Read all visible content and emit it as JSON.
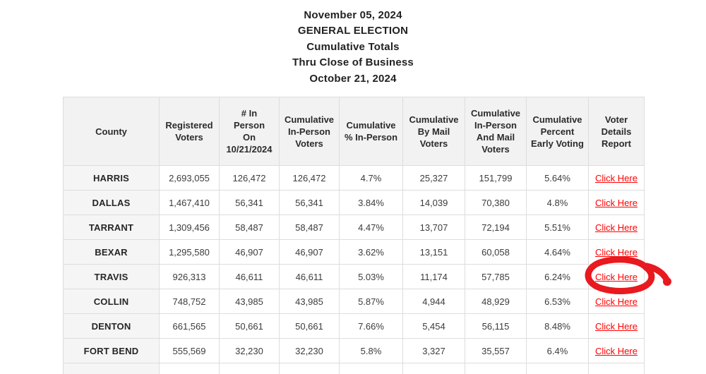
{
  "title": {
    "lines": [
      "November 05, 2024",
      "GENERAL ELECTION",
      "Cumulative Totals",
      "Thru Close of Business",
      "October 21, 2024"
    ]
  },
  "table": {
    "columns": [
      "County",
      "Registered Voters",
      "# In\nPerson\nOn\n10/21/2024",
      "Cumulative In-Person Voters",
      "Cumulative % In-Person",
      "Cumulative By Mail Voters",
      "Cumulative In-Person And Mail Voters",
      "Cumulative Percent Early Voting",
      "Voter Details Report"
    ],
    "rows": [
      {
        "county": "HARRIS",
        "registered_voters": "2,693,055",
        "in_person_on_date": "126,472",
        "cumulative_in_person": "126,472",
        "cumulative_pct_in_person": "4.7%",
        "cumulative_by_mail": "25,327",
        "cumulative_in_person_and_mail": "151,799",
        "cumulative_pct_early": "5.64%",
        "link": "Click Here"
      },
      {
        "county": "DALLAS",
        "registered_voters": "1,467,410",
        "in_person_on_date": "56,341",
        "cumulative_in_person": "56,341",
        "cumulative_pct_in_person": "3.84%",
        "cumulative_by_mail": "14,039",
        "cumulative_in_person_and_mail": "70,380",
        "cumulative_pct_early": "4.8%",
        "link": "Click Here"
      },
      {
        "county": "TARRANT",
        "registered_voters": "1,309,456",
        "in_person_on_date": "58,487",
        "cumulative_in_person": "58,487",
        "cumulative_pct_in_person": "4.47%",
        "cumulative_by_mail": "13,707",
        "cumulative_in_person_and_mail": "72,194",
        "cumulative_pct_early": "5.51%",
        "link": "Click Here"
      },
      {
        "county": "BEXAR",
        "registered_voters": "1,295,580",
        "in_person_on_date": "46,907",
        "cumulative_in_person": "46,907",
        "cumulative_pct_in_person": "3.62%",
        "cumulative_by_mail": "13,151",
        "cumulative_in_person_and_mail": "60,058",
        "cumulative_pct_early": "4.64%",
        "link": "Click Here"
      },
      {
        "county": "TRAVIS",
        "registered_voters": "926,313",
        "in_person_on_date": "46,611",
        "cumulative_in_person": "46,611",
        "cumulative_pct_in_person": "5.03%",
        "cumulative_by_mail": "11,174",
        "cumulative_in_person_and_mail": "57,785",
        "cumulative_pct_early": "6.24%",
        "link": "Click Here"
      },
      {
        "county": "COLLIN",
        "registered_voters": "748,752",
        "in_person_on_date": "43,985",
        "cumulative_in_person": "43,985",
        "cumulative_pct_in_person": "5.87%",
        "cumulative_by_mail": "4,944",
        "cumulative_in_person_and_mail": "48,929",
        "cumulative_pct_early": "6.53%",
        "link": "Click Here"
      },
      {
        "county": "DENTON",
        "registered_voters": "661,565",
        "in_person_on_date": "50,661",
        "cumulative_in_person": "50,661",
        "cumulative_pct_in_person": "7.66%",
        "cumulative_by_mail": "5,454",
        "cumulative_in_person_and_mail": "56,115",
        "cumulative_pct_early": "8.48%",
        "link": "Click Here"
      },
      {
        "county": "FORT BEND",
        "registered_voters": "555,569",
        "in_person_on_date": "32,230",
        "cumulative_in_person": "32,230",
        "cumulative_pct_in_person": "5.8%",
        "cumulative_by_mail": "3,327",
        "cumulative_in_person_and_mail": "35,557",
        "cumulative_pct_early": "6.4%",
        "link": "Click Here"
      }
    ]
  },
  "annotation": {
    "shape": "hand-drawn-circle-with-tail",
    "target_row": "TRAVIS",
    "target_cell": "Click Here",
    "color": "#e8191f"
  },
  "colors": {
    "link_red": "#ff0000",
    "header_bg": "#f2f2f2",
    "county_bg": "#f5f5f5",
    "border": "#dddddd"
  }
}
